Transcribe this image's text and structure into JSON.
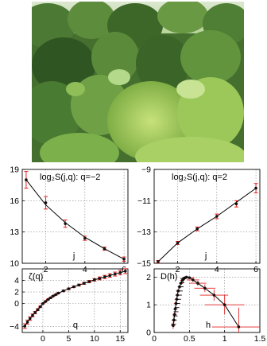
{
  "photo": {
    "subject": "forest canopy on hillside",
    "colors": [
      "#5c8a3e",
      "#3f6a2c",
      "#a6cf63",
      "#cfe3b8"
    ]
  },
  "chart_data": [
    {
      "id": "tl",
      "type": "line",
      "annotation": "log₂S(j,q): q=−2",
      "xlabel": "j",
      "xlim": [
        0.8,
        6.2
      ],
      "ylim": [
        10,
        19
      ],
      "xticks": [
        "2",
        "4",
        "6"
      ],
      "yticks": [
        "10",
        "13",
        "16",
        "19"
      ],
      "xtick_vals": [
        2,
        4,
        6
      ],
      "ytick_vals": [
        10,
        13,
        16,
        19
      ],
      "x": [
        1,
        2,
        3,
        4,
        5,
        6
      ],
      "y": [
        18.0,
        15.8,
        13.8,
        12.4,
        11.4,
        10.4
      ],
      "err": [
        0.8,
        0.6,
        0.35,
        0.2,
        0.15,
        0.2
      ],
      "fit": [
        [
          1,
          18.0
        ],
        [
          2,
          15.6
        ],
        [
          3,
          13.9
        ],
        [
          4,
          12.5
        ],
        [
          5,
          11.4
        ],
        [
          6,
          10.4
        ]
      ]
    },
    {
      "id": "tr",
      "type": "line",
      "annotation": "log₂S(j,q): q=2",
      "xlabel": "j",
      "xlim": [
        0.8,
        6.2
      ],
      "ylim": [
        -15,
        -9
      ],
      "xticks": [
        "2",
        "4",
        "6"
      ],
      "yticks": [
        "−15",
        "−13",
        "−11",
        "−9"
      ],
      "xtick_vals": [
        2,
        4,
        6
      ],
      "ytick_vals": [
        -15,
        -13,
        -11,
        -9
      ],
      "x": [
        1,
        2,
        3,
        4,
        5,
        6
      ],
      "y": [
        -14.9,
        -13.7,
        -12.8,
        -12.0,
        -11.2,
        -10.2
      ],
      "err": [
        0.08,
        0.1,
        0.12,
        0.15,
        0.2,
        0.3
      ],
      "fit": [
        [
          1,
          -14.9
        ],
        [
          2,
          -13.7
        ],
        [
          3,
          -12.8
        ],
        [
          4,
          -12.0
        ],
        [
          5,
          -11.1
        ],
        [
          6,
          -10.2
        ]
      ]
    },
    {
      "id": "bl",
      "type": "line",
      "annotation": "ζ(q)",
      "xlabel": "q",
      "xlim": [
        -4,
        16.5
      ],
      "ylim": [
        -5,
        6
      ],
      "xticks": [
        "0",
        "5",
        "10",
        "15"
      ],
      "yticks": [
        "−4",
        "0",
        "2",
        "4"
      ],
      "xtick_vals": [
        0,
        5,
        10,
        15
      ],
      "ytick_vals": [
        -4,
        0,
        2,
        4
      ],
      "x": [
        -3.5,
        -3,
        -2.5,
        -2,
        -1.5,
        -1,
        -0.5,
        0,
        0.5,
        1,
        1.5,
        2,
        2.5,
        3,
        4,
        5,
        6,
        7,
        8,
        9,
        10,
        11,
        12,
        13,
        14,
        15,
        16
      ],
      "y": [
        -3.9,
        -3.2,
        -2.6,
        -2.05,
        -1.55,
        -1.05,
        -0.55,
        0,
        0.35,
        0.7,
        1.0,
        1.3,
        1.55,
        1.8,
        2.2,
        2.55,
        2.9,
        3.2,
        3.5,
        3.8,
        4.1,
        4.35,
        4.6,
        4.85,
        5.1,
        5.35,
        5.6
      ],
      "err": [
        0.4,
        0.35,
        0.3,
        0.25,
        0.2,
        0.15,
        0.1,
        0.05,
        0.05,
        0.05,
        0.06,
        0.07,
        0.08,
        0.09,
        0.1,
        0.12,
        0.14,
        0.16,
        0.18,
        0.2,
        0.22,
        0.25,
        0.28,
        0.31,
        0.34,
        0.38,
        0.42
      ]
    },
    {
      "id": "br",
      "type": "scatter",
      "annotation": "D(h)",
      "xlabel": "h",
      "xlim": [
        0,
        1.5
      ],
      "ylim": [
        0,
        2.3
      ],
      "xticks": [
        "0",
        "0.5",
        "1",
        "1.5"
      ],
      "yticks": [
        "0",
        "1",
        "2"
      ],
      "xtick_vals": [
        0,
        0.5,
        1,
        1.5
      ],
      "ytick_vals": [
        0,
        1,
        2
      ],
      "x": [
        0.27,
        0.28,
        0.29,
        0.3,
        0.31,
        0.32,
        0.33,
        0.34,
        0.36,
        0.38,
        0.4,
        0.42,
        0.44,
        0.46,
        0.5,
        0.55,
        0.62,
        0.72,
        0.85,
        1.0,
        1.2
      ],
      "y": [
        0.25,
        0.45,
        0.65,
        0.85,
        1.05,
        1.2,
        1.35,
        1.5,
        1.65,
        1.78,
        1.88,
        1.94,
        1.98,
        2.0,
        1.98,
        1.9,
        1.78,
        1.6,
        1.35,
        1.0,
        0.2
      ],
      "xerr": [
        0.03,
        0.03,
        0.03,
        0.03,
        0.03,
        0.03,
        0.03,
        0.03,
        0.03,
        0.03,
        0.03,
        0.03,
        0.04,
        0.05,
        0.07,
        0.09,
        0.12,
        0.15,
        0.2,
        0.28,
        0.38
      ],
      "yerr": [
        0.12,
        0.1,
        0.1,
        0.08,
        0.07,
        0.06,
        0.06,
        0.05,
        0.05,
        0.04,
        0.04,
        0.03,
        0.03,
        0.03,
        0.04,
        0.06,
        0.09,
        0.14,
        0.2,
        0.35,
        0.7
      ]
    }
  ]
}
